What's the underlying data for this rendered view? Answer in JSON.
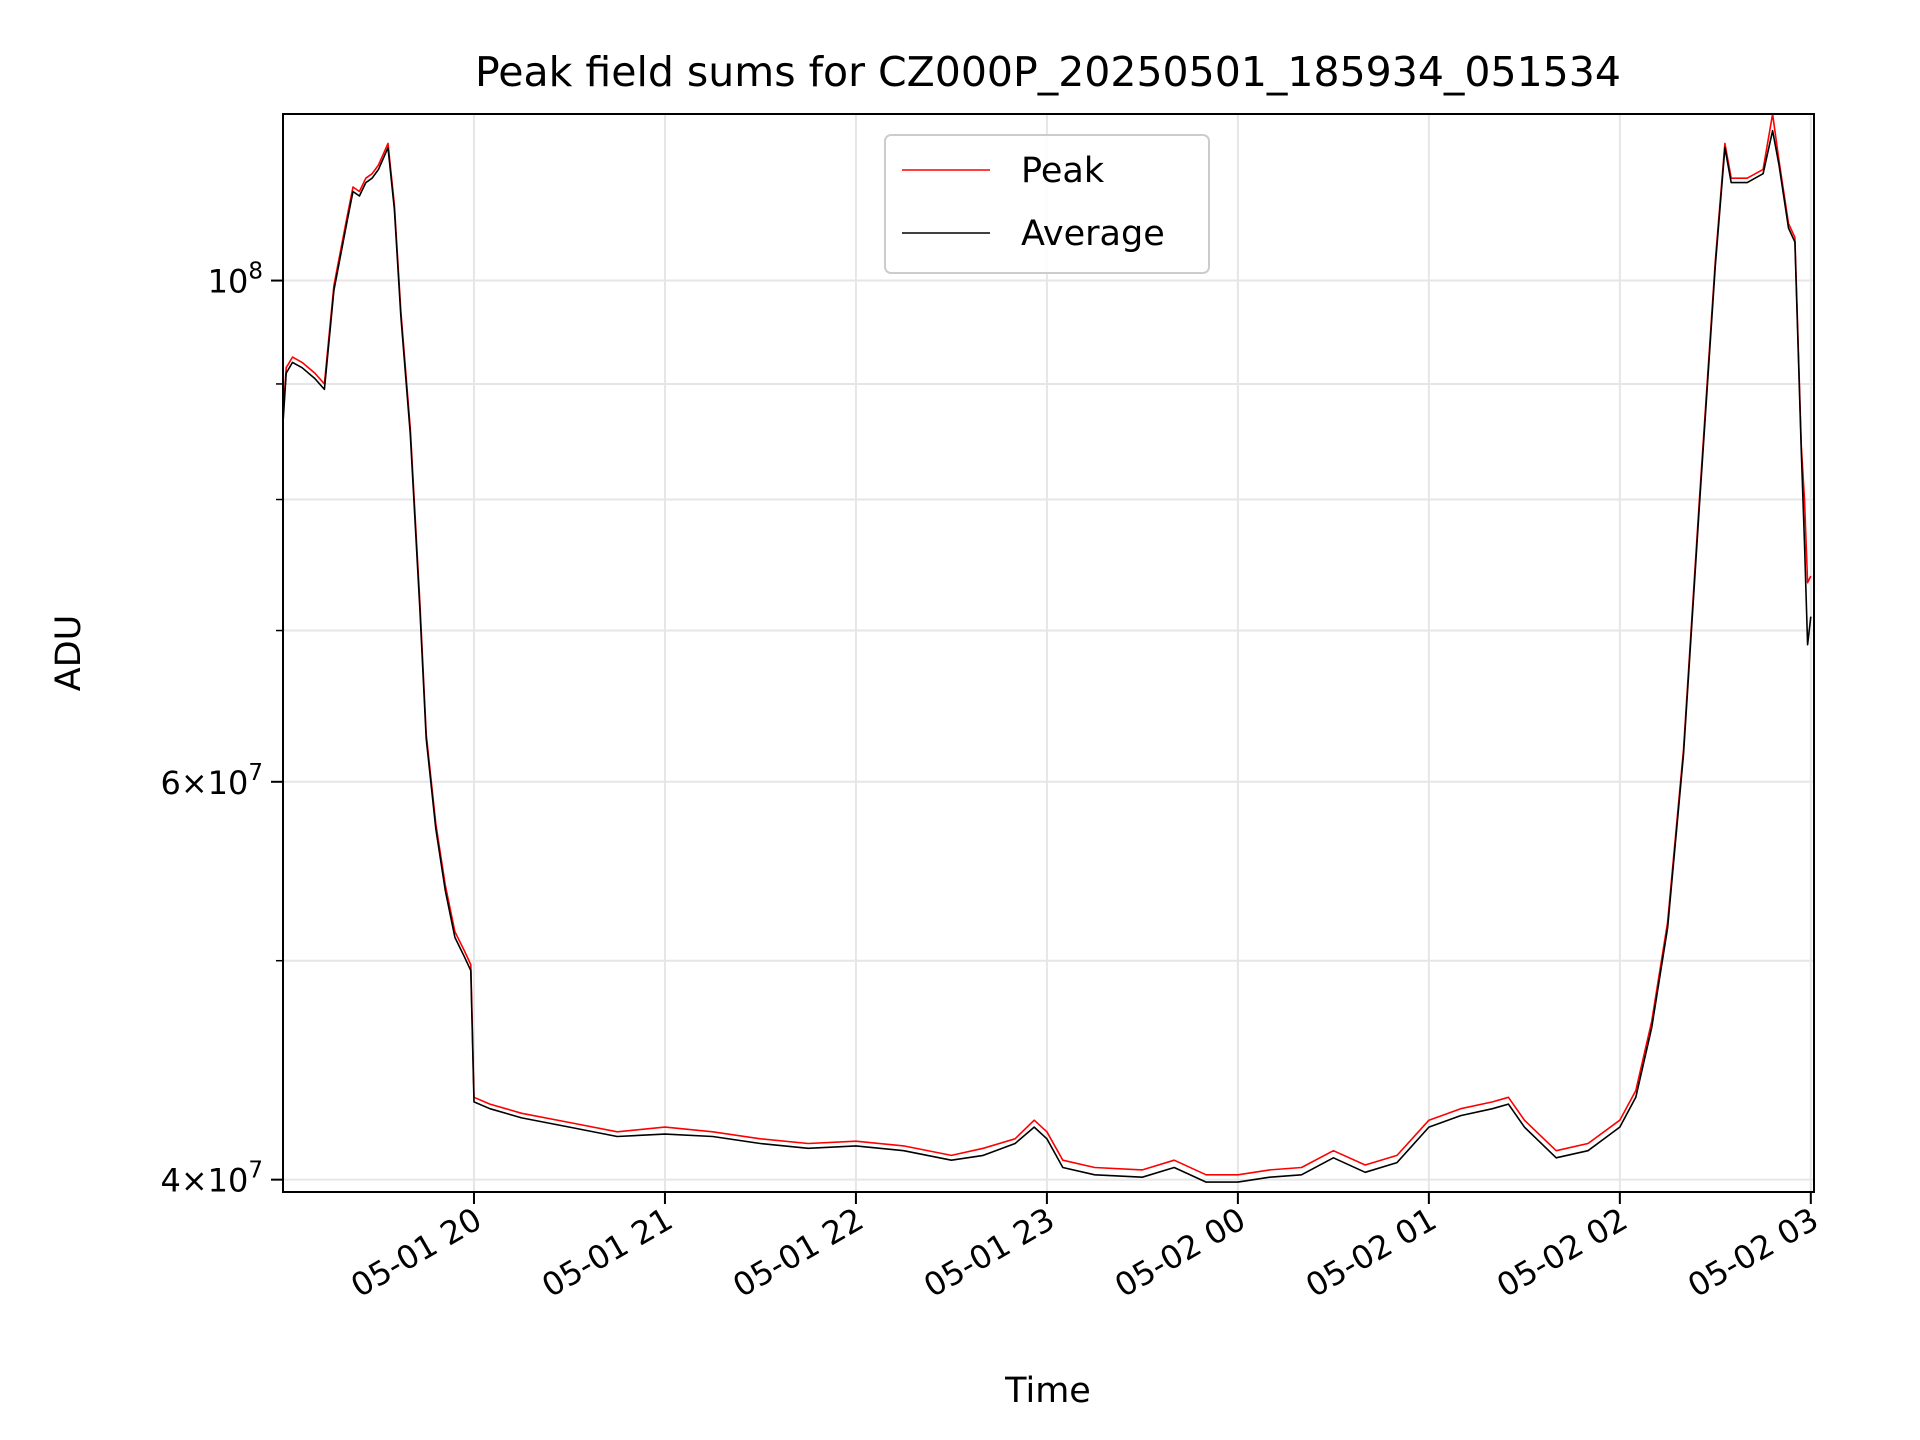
{
  "chart_data": {
    "type": "line",
    "title": "Peak field sums for CZ000P_20250501_185934_051534",
    "xlabel": "Time",
    "ylabel": "ADU",
    "yscale": "log",
    "grid": true,
    "legend_position": "top-center",
    "xlim": [
      "2025-05-01 19:00",
      "2025-05-02 03:01"
    ],
    "ylim": [
      39500000,
      118500000
    ],
    "x_ticks": [
      {
        "value": "2025-05-01 20:00",
        "label": "05-01 20"
      },
      {
        "value": "2025-05-01 21:00",
        "label": "05-01 21"
      },
      {
        "value": "2025-05-01 22:00",
        "label": "05-01 22"
      },
      {
        "value": "2025-05-01 23:00",
        "label": "05-01 23"
      },
      {
        "value": "2025-05-02 00:00",
        "label": "05-02 00"
      },
      {
        "value": "2025-05-02 01:00",
        "label": "05-02 01"
      },
      {
        "value": "2025-05-02 02:00",
        "label": "05-02 02"
      },
      {
        "value": "2025-05-02 03:00",
        "label": "05-02 03"
      }
    ],
    "y_ticks": [
      {
        "value": 40000000,
        "mant": "4",
        "exp": "7"
      },
      {
        "value": 60000000,
        "mant": "6",
        "exp": "7"
      },
      {
        "value": 100000000,
        "mant": "",
        "exp": "8"
      }
    ],
    "y_minor_ticks": [
      50000000,
      70000000,
      80000000,
      90000000
    ],
    "series": [
      {
        "name": "Peak",
        "color": "#ff0000",
        "x": [
          "2025-05-01 19:00",
          "2025-05-01 19:01",
          "2025-05-01 19:03",
          "2025-05-01 19:06",
          "2025-05-01 19:10",
          "2025-05-01 19:13",
          "2025-05-01 19:16",
          "2025-05-01 19:20",
          "2025-05-01 19:22",
          "2025-05-01 19:24",
          "2025-05-01 19:26",
          "2025-05-01 19:28",
          "2025-05-01 19:30",
          "2025-05-01 19:33",
          "2025-05-01 19:35",
          "2025-05-01 19:37",
          "2025-05-01 19:40",
          "2025-05-01 19:43",
          "2025-05-01 19:45",
          "2025-05-01 19:48",
          "2025-05-01 19:51",
          "2025-05-01 19:54",
          "2025-05-01 19:57",
          "2025-05-01 19:59",
          "2025-05-01 20:00",
          "2025-05-01 20:05",
          "2025-05-01 20:15",
          "2025-05-01 20:30",
          "2025-05-01 20:45",
          "2025-05-01 21:00",
          "2025-05-01 21:15",
          "2025-05-01 21:30",
          "2025-05-01 21:45",
          "2025-05-01 22:00",
          "2025-05-01 22:15",
          "2025-05-01 22:30",
          "2025-05-01 22:40",
          "2025-05-01 22:50",
          "2025-05-01 22:56",
          "2025-05-01 23:00",
          "2025-05-01 23:05",
          "2025-05-01 23:15",
          "2025-05-01 23:30",
          "2025-05-01 23:40",
          "2025-05-01 23:50",
          "2025-05-02 00:00",
          "2025-05-02 00:10",
          "2025-05-02 00:20",
          "2025-05-02 00:30",
          "2025-05-02 00:40",
          "2025-05-02 00:50",
          "2025-05-02 01:00",
          "2025-05-02 01:10",
          "2025-05-02 01:20",
          "2025-05-02 01:25",
          "2025-05-02 01:30",
          "2025-05-02 01:40",
          "2025-05-02 01:50",
          "2025-05-02 02:00",
          "2025-05-02 02:05",
          "2025-05-02 02:10",
          "2025-05-02 02:15",
          "2025-05-02 02:20",
          "2025-05-02 02:25",
          "2025-05-02 02:30",
          "2025-05-02 02:33",
          "2025-05-02 02:35",
          "2025-05-02 02:40",
          "2025-05-02 02:45",
          "2025-05-02 02:48",
          "2025-05-02 02:50",
          "2025-05-02 02:53",
          "2025-05-02 02:55",
          "2025-05-02 02:57",
          "2025-05-02 02:58",
          "2025-05-02 02:59",
          "2025-05-02 03:00"
        ],
        "y": [
          87000000,
          91500000,
          92500000,
          92000000,
          91000000,
          90000000,
          99500000,
          106500000,
          110000000,
          109500000,
          111000000,
          111500000,
          112500000,
          115000000,
          108000000,
          97000000,
          86000000,
          72000000,
          63000000,
          57500000,
          54000000,
          51500000,
          50500000,
          49800000,
          43500000,
          43200000,
          42800000,
          42400000,
          42000000,
          42200000,
          42000000,
          41700000,
          41500000,
          41600000,
          41400000,
          41000000,
          41300000,
          41700000,
          42500000,
          42000000,
          40800000,
          40500000,
          40400000,
          40800000,
          40200000,
          40200000,
          40400000,
          40500000,
          41200000,
          40600000,
          41000000,
          42500000,
          43000000,
          43300000,
          43500000,
          42500000,
          41200000,
          41500000,
          42500000,
          43800000,
          47000000,
          52000000,
          62000000,
          80000000,
          102000000,
          115000000,
          111000000,
          111000000,
          112000000,
          118500000,
          113000000,
          106000000,
          104500000,
          84500000,
          80000000,
          73500000,
          74000000
        ]
      },
      {
        "name": "Average",
        "color": "#000000",
        "x": [
          "2025-05-01 19:00",
          "2025-05-01 19:01",
          "2025-05-01 19:03",
          "2025-05-01 19:06",
          "2025-05-01 19:10",
          "2025-05-01 19:13",
          "2025-05-01 19:16",
          "2025-05-01 19:20",
          "2025-05-01 19:22",
          "2025-05-01 19:24",
          "2025-05-01 19:26",
          "2025-05-01 19:28",
          "2025-05-01 19:30",
          "2025-05-01 19:33",
          "2025-05-01 19:35",
          "2025-05-01 19:37",
          "2025-05-01 19:40",
          "2025-05-01 19:43",
          "2025-05-01 19:45",
          "2025-05-01 19:48",
          "2025-05-01 19:51",
          "2025-05-01 19:54",
          "2025-05-01 19:57",
          "2025-05-01 19:59",
          "2025-05-01 20:00",
          "2025-05-01 20:05",
          "2025-05-01 20:15",
          "2025-05-01 20:30",
          "2025-05-01 20:45",
          "2025-05-01 21:00",
          "2025-05-01 21:15",
          "2025-05-01 21:30",
          "2025-05-01 21:45",
          "2025-05-01 22:00",
          "2025-05-01 22:15",
          "2025-05-01 22:30",
          "2025-05-01 22:40",
          "2025-05-01 22:50",
          "2025-05-01 22:56",
          "2025-05-01 23:00",
          "2025-05-01 23:05",
          "2025-05-01 23:15",
          "2025-05-01 23:30",
          "2025-05-01 23:40",
          "2025-05-01 23:50",
          "2025-05-02 00:00",
          "2025-05-02 00:10",
          "2025-05-02 00:20",
          "2025-05-02 00:30",
          "2025-05-02 00:40",
          "2025-05-02 00:50",
          "2025-05-02 01:00",
          "2025-05-02 01:10",
          "2025-05-02 01:20",
          "2025-05-02 01:25",
          "2025-05-02 01:30",
          "2025-05-02 01:40",
          "2025-05-02 01:50",
          "2025-05-02 02:00",
          "2025-05-02 02:05",
          "2025-05-02 02:10",
          "2025-05-02 02:15",
          "2025-05-02 02:20",
          "2025-05-02 02:25",
          "2025-05-02 02:30",
          "2025-05-02 02:33",
          "2025-05-02 02:35",
          "2025-05-02 02:40",
          "2025-05-02 02:45",
          "2025-05-02 02:48",
          "2025-05-02 02:50",
          "2025-05-02 02:53",
          "2025-05-02 02:55",
          "2025-05-02 02:57",
          "2025-05-02 02:58",
          "2025-05-02 02:59",
          "2025-05-02 03:00"
        ],
        "y": [
          86500000,
          91000000,
          92000000,
          91500000,
          90500000,
          89500000,
          99000000,
          106000000,
          109500000,
          109000000,
          110500000,
          111000000,
          112000000,
          114500000,
          107500000,
          96500000,
          85500000,
          71500000,
          62700000,
          57200000,
          53700000,
          51200000,
          50200000,
          49500000,
          43300000,
          43000000,
          42600000,
          42200000,
          41800000,
          41900000,
          41800000,
          41500000,
          41300000,
          41400000,
          41200000,
          40800000,
          41000000,
          41500000,
          42200000,
          41700000,
          40500000,
          40200000,
          40100000,
          40500000,
          39900000,
          39900000,
          40100000,
          40200000,
          40900000,
          40300000,
          40700000,
          42200000,
          42700000,
          43000000,
          43200000,
          42200000,
          40900000,
          41200000,
          42200000,
          43500000,
          46700000,
          51700000,
          61700000,
          79500000,
          101500000,
          114500000,
          110500000,
          110500000,
          111500000,
          116500000,
          112500000,
          105500000,
          104000000,
          84000000,
          76500000,
          69000000,
          71000000
        ]
      }
    ]
  }
}
